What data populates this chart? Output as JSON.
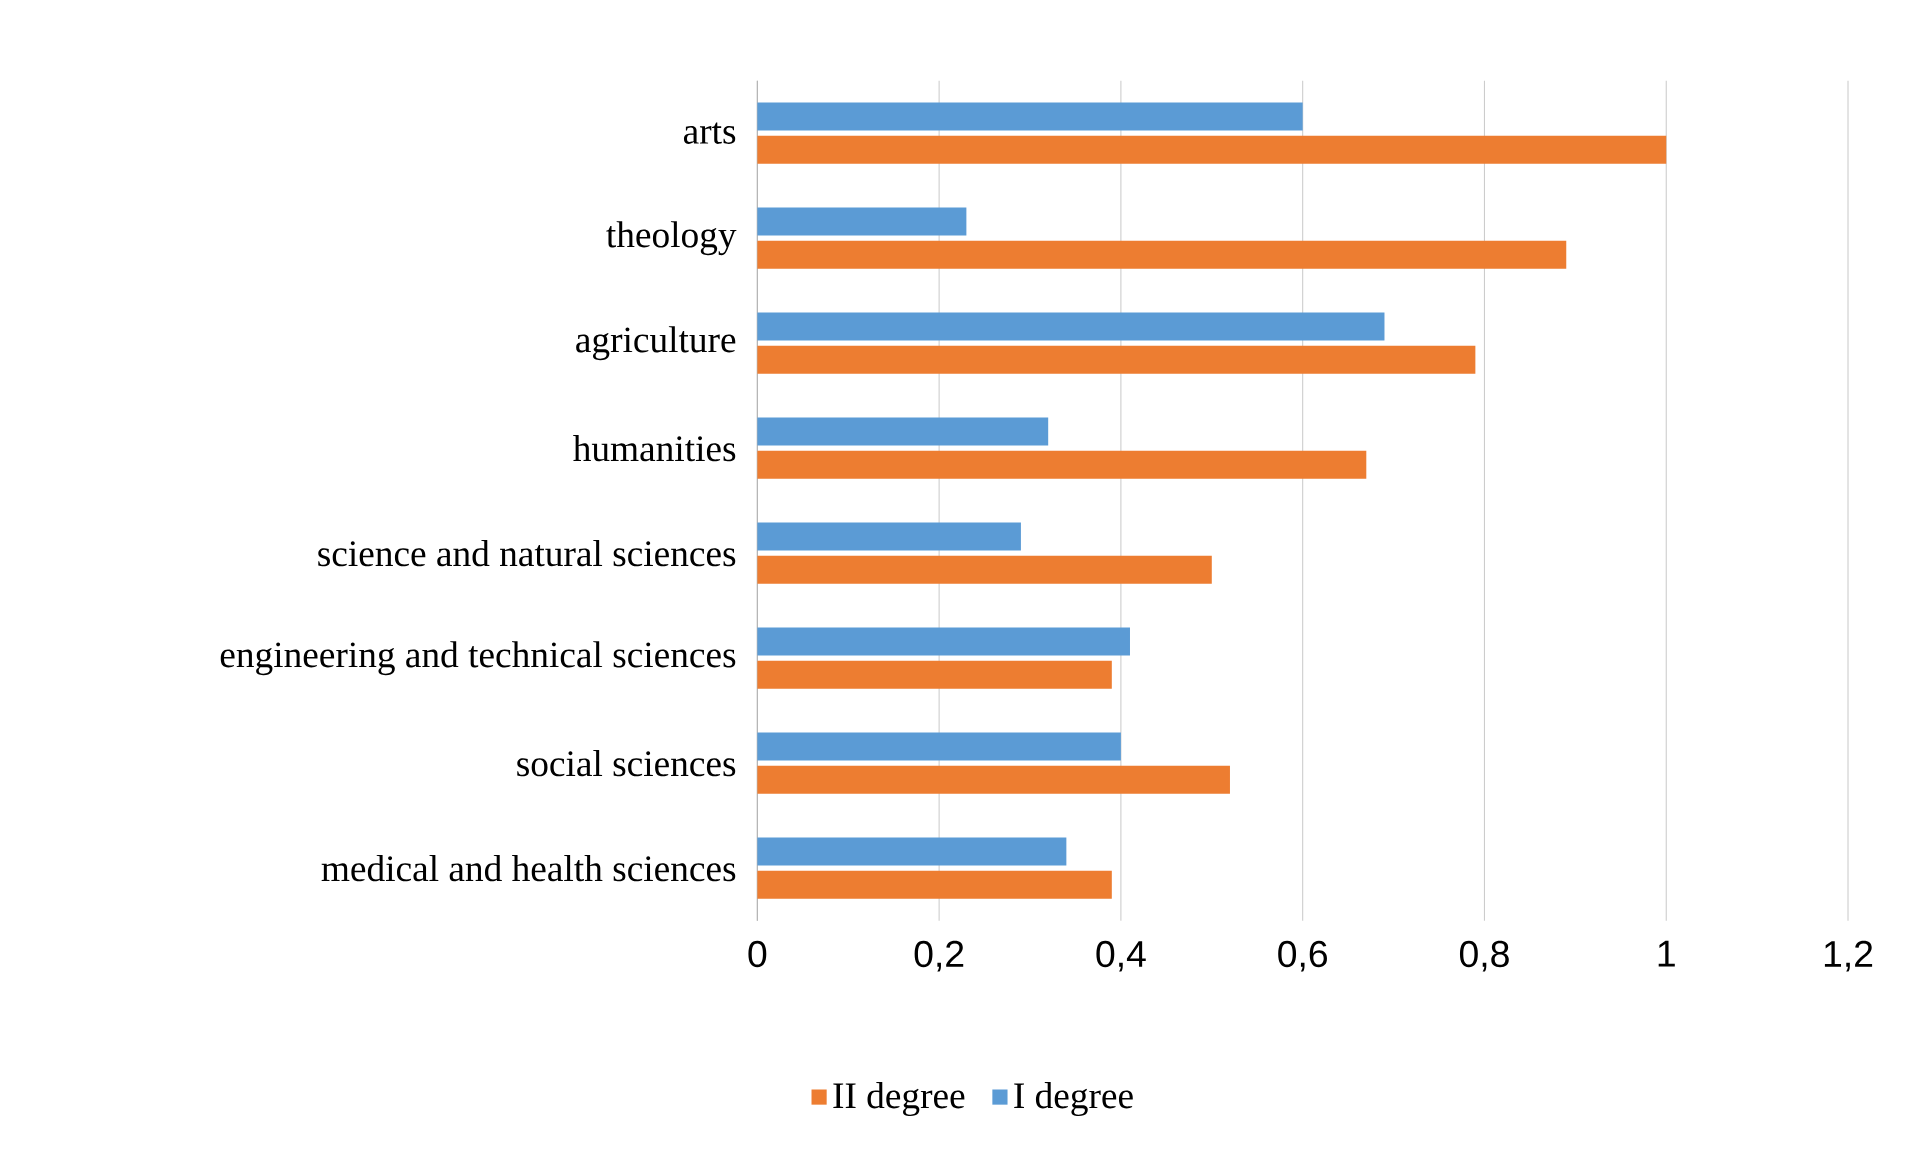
{
  "chart_data": {
    "type": "bar",
    "orientation": "horizontal",
    "categories": [
      "arts",
      "theology",
      "agriculture",
      "humanities",
      "science and natural sciences",
      "engineering and technical sciences",
      "social sciences",
      "medical and health sciences"
    ],
    "series": [
      {
        "name": "II degree",
        "color": "#ed7d31",
        "values": [
          1.0,
          0.89,
          0.79,
          0.67,
          0.5,
          0.39,
          0.52,
          0.39
        ]
      },
      {
        "name": "I degree",
        "color": "#5b9bd5",
        "values": [
          0.6,
          0.23,
          0.69,
          0.32,
          0.29,
          0.41,
          0.4,
          0.34
        ]
      }
    ],
    "xlim": [
      0,
      1.2
    ],
    "xticks": [
      0,
      {
        "value": 0.2,
        "label": "0,2"
      },
      {
        "value": 0.4,
        "label": "0,4"
      },
      {
        "value": 0.6,
        "label": "0,6"
      },
      {
        "value": 0.8,
        "label": "0,8"
      },
      1,
      {
        "value": 1.2,
        "label": "1,2"
      }
    ],
    "grid": "x",
    "legend": "bottom"
  }
}
